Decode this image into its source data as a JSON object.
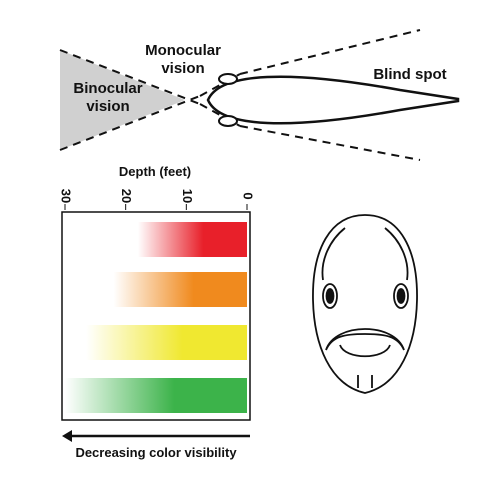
{
  "labels": {
    "binocular": "Binocular vision",
    "monocular": "Monocular vision",
    "blind_spot": "Blind spot"
  },
  "depth_chart": {
    "axis_title": "Depth (feet)",
    "xlim": [
      30,
      0
    ],
    "xticks": [
      30,
      20,
      10,
      0
    ],
    "bars": [
      {
        "color": "#e8202a",
        "value": 18
      },
      {
        "color": "#f08a1e",
        "value": 22
      },
      {
        "color": "#f0e830",
        "value": 26.5
      },
      {
        "color": "#3cb34a",
        "value": 30
      }
    ],
    "caption": "Decreasing color visibility"
  }
}
